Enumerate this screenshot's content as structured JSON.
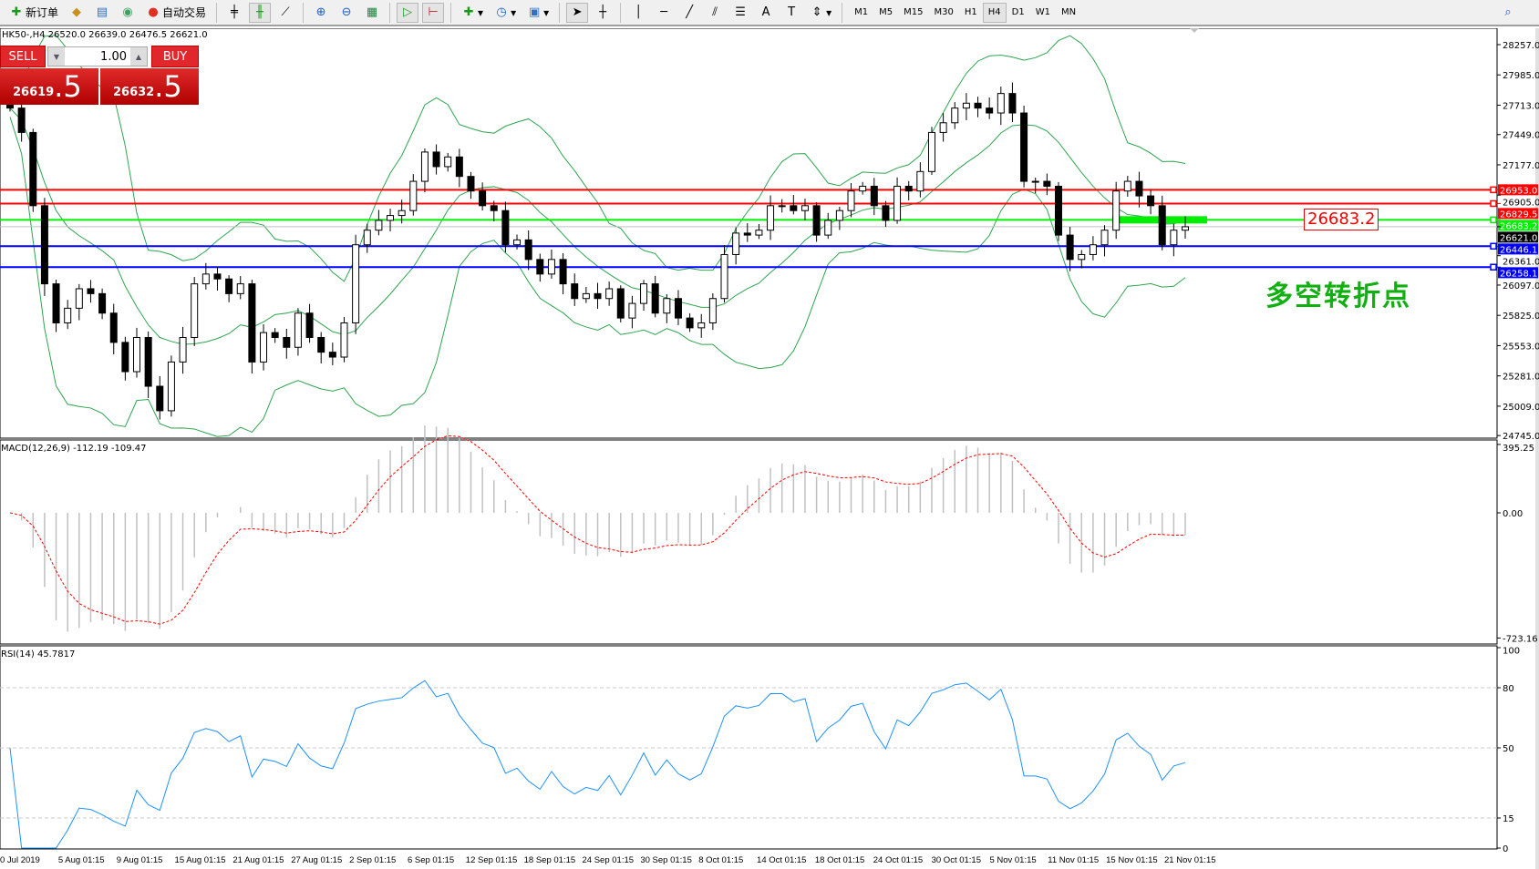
{
  "toolbar": {
    "new_order": "新订单",
    "auto_trading": "自动交易",
    "timeframes": [
      "M1",
      "M5",
      "M15",
      "M30",
      "H1",
      "H4",
      "D1",
      "W1",
      "MN"
    ],
    "active_timeframe": "H4"
  },
  "chart": {
    "title": "HK50-,H4  26520.0 26639.0 26476.5 26621.0",
    "trade_panel": {
      "sell_label": "SELL",
      "buy_label": "BUY",
      "lot": "1.00",
      "sell_price_main": "26619",
      "sell_price_frac": ".5",
      "buy_price_main": "26632",
      "buy_price_frac": ".5"
    },
    "annotation": "多空转折点",
    "annotation_box": "26683.2",
    "colors": {
      "bull_bear_line": "#00ee00",
      "resistance": "#ff0000",
      "support": "#0000ff",
      "bands": "#2ea44f",
      "rsi": "#1e90ff",
      "macd_signal": "#ff0000"
    }
  },
  "chart_data": [
    {
      "type": "candlestick",
      "symbol": "HK50-",
      "timeframe": "H4",
      "ylim": [
        24745.0,
        28257.0
      ],
      "y_ticks": [
        "28257.0",
        "27985.0",
        "27713.0",
        "27449.0",
        "27177.0",
        "26905.0",
        "26361.0",
        "26097.0",
        "25825.0",
        "25553.0",
        "25281.0",
        "25009.0",
        "24745.0"
      ],
      "closes": [
        27687,
        27468,
        26810,
        26108,
        25757,
        25889,
        26064,
        26020,
        25845,
        25582,
        25319,
        25626,
        25188,
        24968,
        25406,
        25626,
        26108,
        26196,
        26152,
        26020,
        26108,
        25406,
        25670,
        25626,
        25538,
        25845,
        25626,
        25494,
        25450,
        25757,
        26459,
        26590,
        26678,
        26722,
        26766,
        27029,
        27292,
        27161,
        27248,
        27073,
        26942,
        26810,
        26766,
        26459,
        26503,
        26327,
        26196,
        26327,
        26108,
        25976,
        26020,
        25976,
        26064,
        25801,
        25932,
        26108,
        25845,
        25976,
        25801,
        25713,
        25757,
        25976,
        26371,
        26564,
        26546,
        26590,
        26810,
        26810,
        26766,
        26810,
        26546,
        26678,
        26766,
        26942,
        26985,
        26810,
        26678,
        26985,
        26942,
        27117,
        27468,
        27555,
        27687,
        27731,
        27687,
        27643,
        27818,
        27643,
        27029,
        27029,
        26985,
        26546,
        26327,
        26371,
        26459,
        26590,
        26942,
        27029,
        26898,
        26810,
        26459,
        26590,
        26621
      ],
      "horizontal_lines": [
        {
          "price": "26953.0",
          "color": "#ff0000"
        },
        {
          "price": "26829.5",
          "color": "#ff0000"
        },
        {
          "price": "26683.2",
          "color": "#00ee00"
        },
        {
          "price": "26621.0",
          "color": "#000000",
          "kind": "bid"
        },
        {
          "price": "26446.1",
          "color": "#0000ff"
        },
        {
          "price": "26258.1",
          "color": "#0000ff"
        }
      ],
      "x_ticks": [
        "0 Jul 2019",
        "5 Aug 01:15",
        "9 Aug 01:15",
        "15 Aug 01:15",
        "21 Aug 01:15",
        "27 Aug 01:15",
        "2 Sep 01:15",
        "6 Sep 01:15",
        "12 Sep 01:15",
        "18 Sep 01:15",
        "24 Sep 01:15",
        "30 Sep 01:15",
        "8 Oct 01:15",
        "14 Oct 01:15",
        "18 Oct 01:15",
        "24 Oct 01:15",
        "30 Oct 01:15",
        "5 Nov 01:15",
        "11 Nov 01:15",
        "15 Nov 01:15",
        "21 Nov 01:15"
      ]
    },
    {
      "type": "bar+line",
      "name": "MACD(12,26,9) -112.19 -109.47",
      "ylim": [
        -723.16,
        395.25
      ],
      "y_ticks": [
        "395.25",
        "0.00",
        "-723.16"
      ]
    },
    {
      "type": "line",
      "name": "RSI(14) 45.7817",
      "ylim": [
        0,
        100
      ],
      "y_ticks": [
        "100",
        "80",
        "50",
        "15",
        "0"
      ],
      "levels": [
        80,
        50,
        15
      ]
    }
  ]
}
